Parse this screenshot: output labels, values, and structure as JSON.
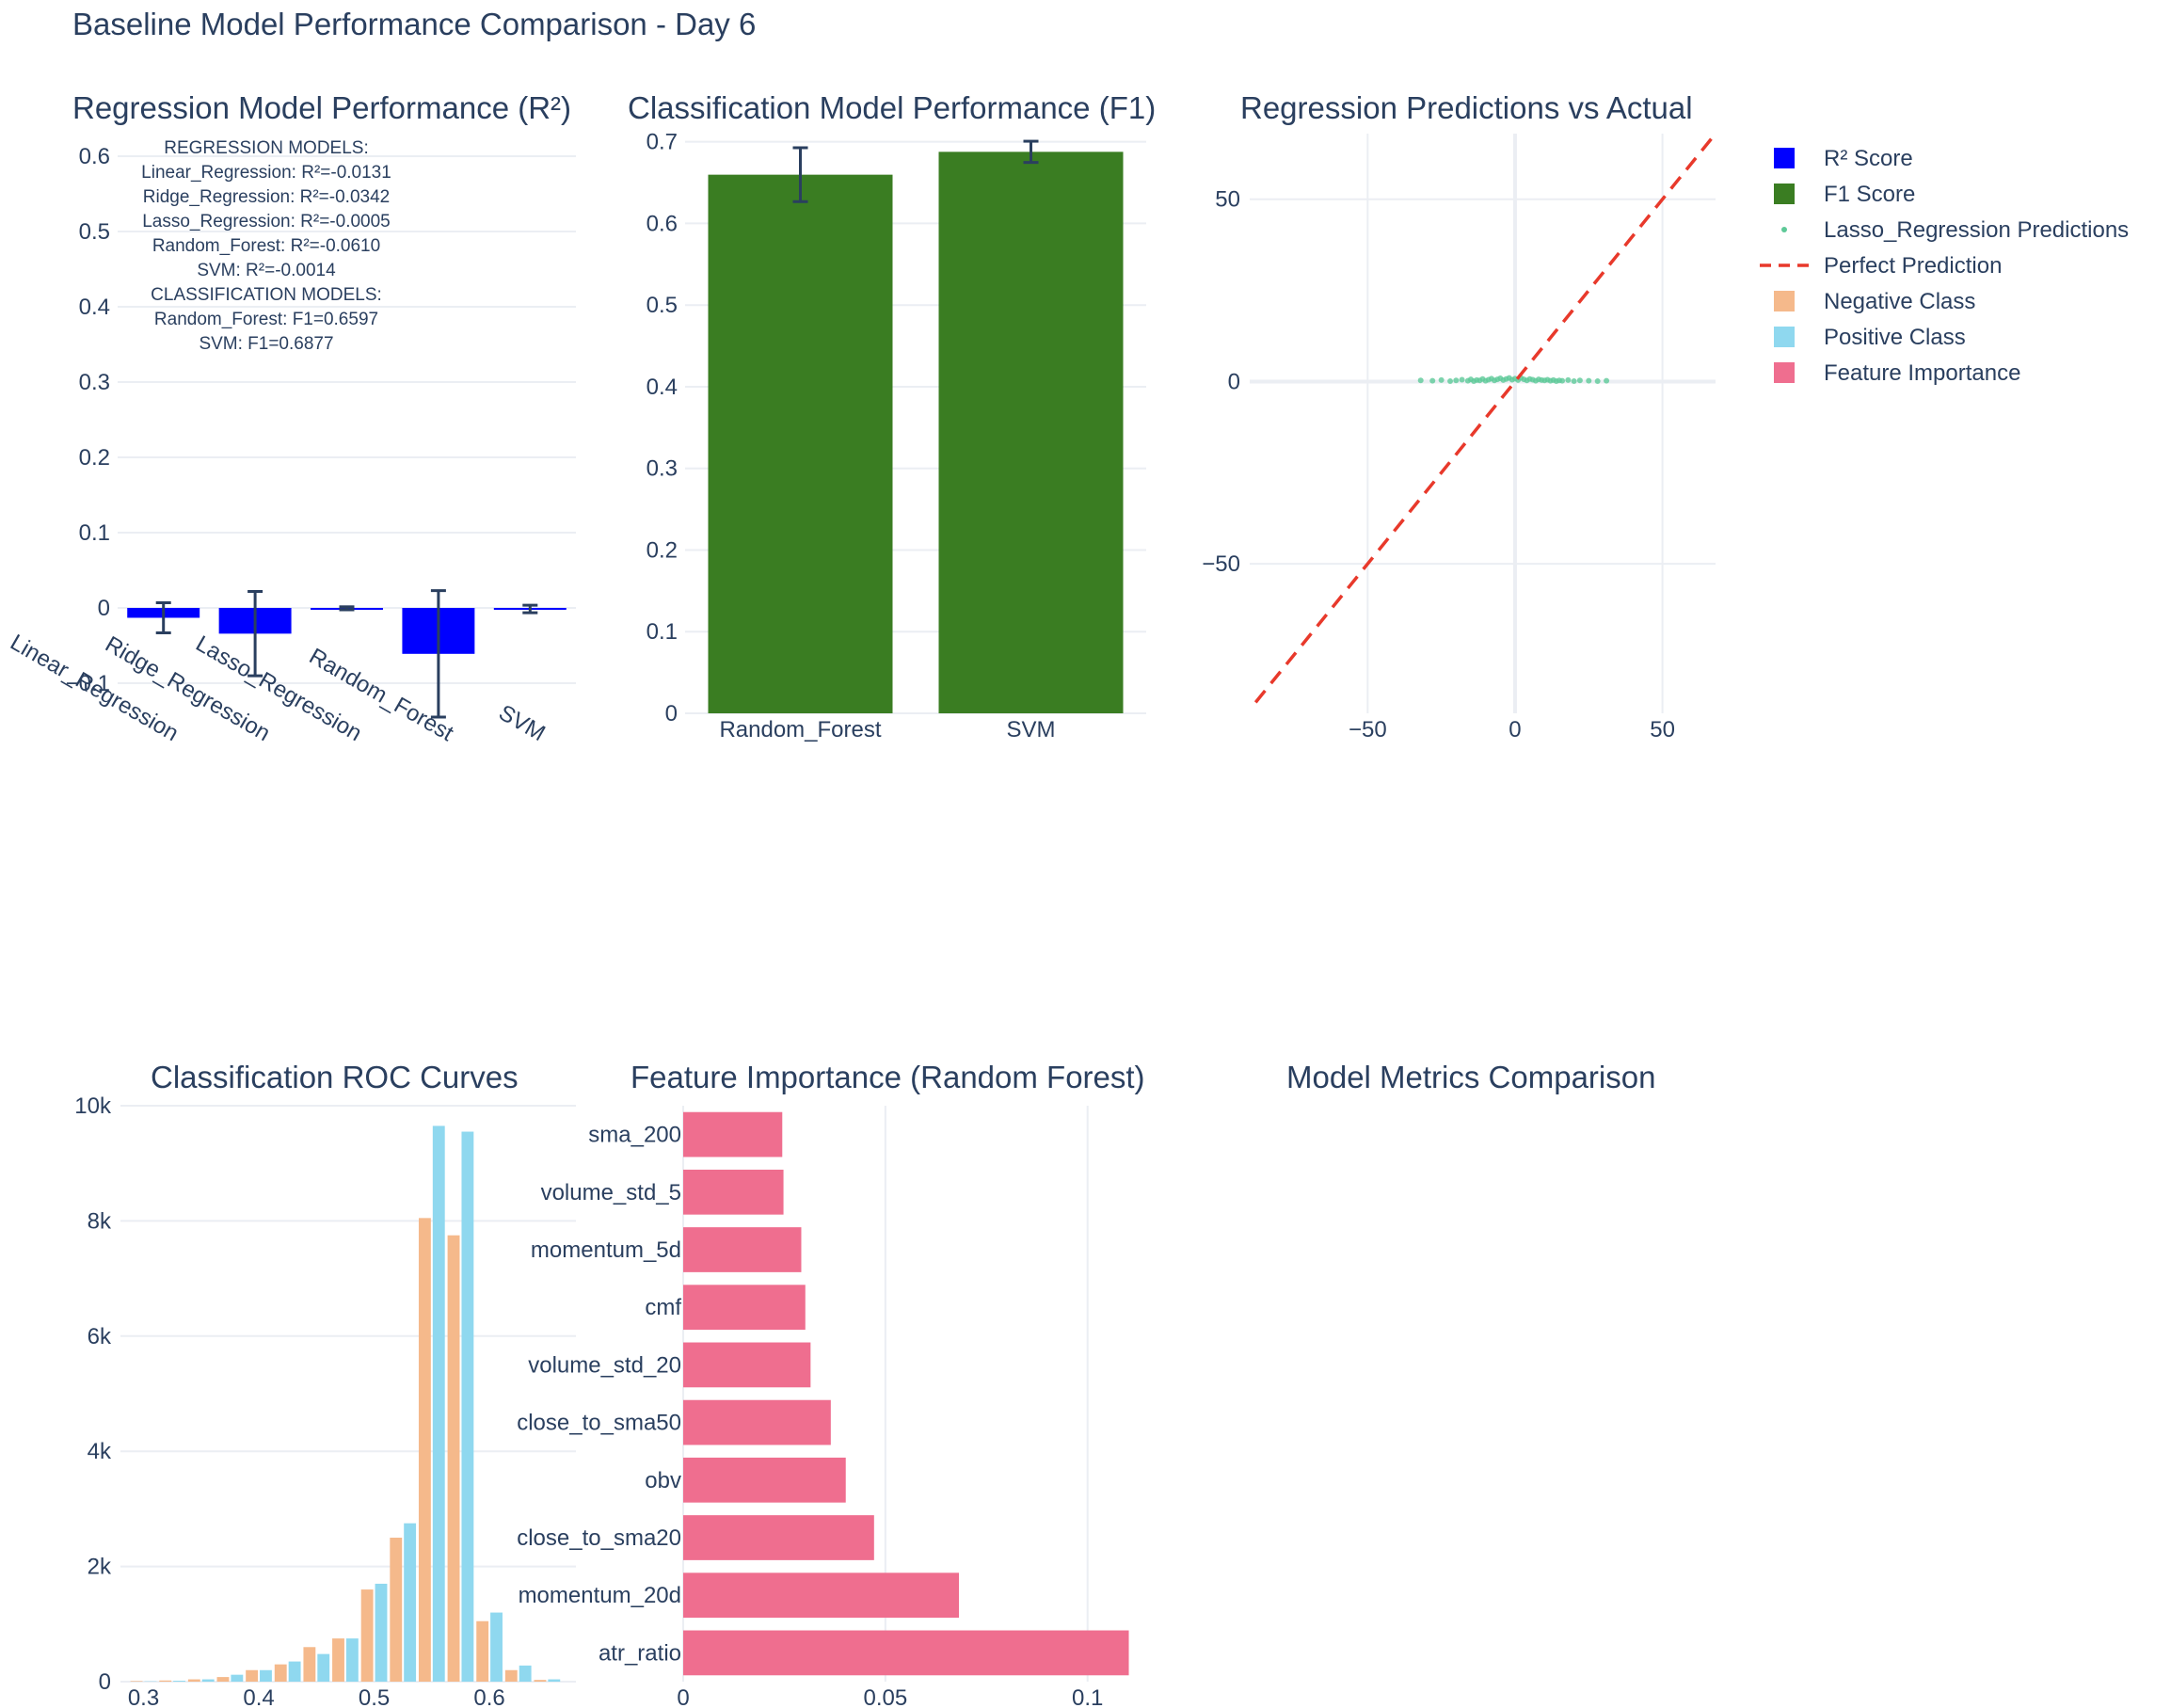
{
  "figure": {
    "title": "Baseline Model Performance Comparison - Day 6",
    "colors": {
      "reg": "#0000ff",
      "cls": "#3a7d22",
      "scatter": "#5ec998",
      "perfect": "#e8392b",
      "neg": "#f5b98b",
      "pos": "#8fd8ef",
      "feat": "#ef6e8f",
      "grid": "#ebeef3",
      "text": "#2a3f5f",
      "error": "#2a3f5f"
    }
  },
  "legend": {
    "items": [
      {
        "label": "R² Score",
        "kind": "square",
        "color": "#0000ff"
      },
      {
        "label": "F1 Score",
        "kind": "square",
        "color": "#3a7d22"
      },
      {
        "label": "Lasso_Regression Predictions",
        "kind": "dot",
        "color": "#5ec998"
      },
      {
        "label": "Perfect Prediction",
        "kind": "dash",
        "color": "#e8392b"
      },
      {
        "label": "Negative Class",
        "kind": "square",
        "color": "#f5b98b"
      },
      {
        "label": "Positive Class",
        "kind": "square",
        "color": "#8fd8ef"
      },
      {
        "label": "Feature Importance",
        "kind": "square",
        "color": "#ef6e8f"
      }
    ]
  },
  "annotation": {
    "lines": [
      "REGRESSION MODELS:",
      "Linear_Regression: R²=-0.0131",
      "Ridge_Regression: R²=-0.0342",
      "Lasso_Regression: R²=-0.0005",
      "Random_Forest: R²=-0.0610",
      "SVM: R²=-0.0014",
      "CLASSIFICATION MODELS:",
      "Random_Forest: F1=0.6597",
      "SVM: F1=0.6877"
    ]
  },
  "chart_data": [
    {
      "id": "reg",
      "type": "bar",
      "title": "Regression Model Performance (R²)",
      "series_name": "R² Score",
      "categories": [
        "Linear_Regression",
        "Ridge_Regression",
        "Lasso_Regression",
        "Random_Forest",
        "SVM"
      ],
      "values": [
        -0.0131,
        -0.0342,
        -0.0005,
        -0.061,
        -0.0014
      ],
      "error": [
        0.02,
        0.056,
        0.002,
        0.084,
        0.005
      ],
      "ylim": [
        -0.14,
        0.63
      ],
      "yticks": [
        -0.1,
        0,
        0.1,
        0.2,
        0.3,
        0.4,
        0.5,
        0.6
      ],
      "ytick_labels": [
        "−0.1",
        "0",
        "0.1",
        "0.2",
        "0.3",
        "0.4",
        "0.5",
        "0.6"
      ],
      "grid": true
    },
    {
      "id": "cls",
      "type": "bar",
      "title": "Classification Model Performance (F1)",
      "series_name": "F1 Score",
      "categories": [
        "Random_Forest",
        "SVM"
      ],
      "values": [
        0.6597,
        0.6877
      ],
      "error": [
        0.033,
        0.013
      ],
      "ylim": [
        0,
        0.71
      ],
      "yticks": [
        0,
        0.1,
        0.2,
        0.3,
        0.4,
        0.5,
        0.6,
        0.7
      ],
      "ytick_labels": [
        "0",
        "0.1",
        "0.2",
        "0.3",
        "0.4",
        "0.5",
        "0.6",
        "0.7"
      ],
      "grid": true
    },
    {
      "id": "scatter",
      "type": "scatter",
      "title": "Regression Predictions vs Actual",
      "series": [
        {
          "name": "Lasso_Regression Predictions",
          "x": [
            -32,
            -28,
            -25,
            -22,
            -20,
            -18,
            -16,
            -15,
            -14,
            -13,
            -12,
            -11,
            -10,
            -9,
            -8,
            -7,
            -6,
            -5,
            -4,
            -3,
            -2,
            -1,
            0,
            1,
            2,
            3,
            4,
            5,
            6,
            7,
            8,
            9,
            10,
            11,
            12,
            13,
            14,
            15,
            16,
            18,
            20,
            22,
            25,
            28,
            31
          ],
          "y": [
            0.3,
            0.2,
            0.4,
            0.1,
            0.3,
            0.5,
            0.2,
            0.6,
            0.1,
            0.4,
            0.3,
            0.7,
            0.2,
            0.5,
            0.8,
            0.3,
            0.6,
            0.9,
            0.4,
            0.7,
            1,
            0.5,
            0.8,
            0.4,
            1,
            0.6,
            0.3,
            0.7,
            0.5,
            0.2,
            0.6,
            0.4,
            0.3,
            0.5,
            0.2,
            0.4,
            0.1,
            0.3,
            0.2,
            0.4,
            0.1,
            0.3,
            0.2,
            0.1,
            0.2
          ]
        },
        {
          "name": "Perfect Prediction",
          "x": [
            -88,
            68
          ],
          "y": [
            -88,
            68
          ]
        }
      ],
      "xlim": [
        -90,
        68
      ],
      "ylim": [
        -91,
        68
      ],
      "xticks": [
        -50,
        0,
        50
      ],
      "xtick_labels": [
        "−50",
        "0",
        "50"
      ],
      "yticks": [
        -50,
        0,
        50
      ],
      "ytick_labels": [
        "−50",
        "0",
        "50"
      ],
      "grid": true
    },
    {
      "id": "roc",
      "type": "bar",
      "title": "Classification ROC Curves",
      "x": [
        0.3,
        0.325,
        0.35,
        0.375,
        0.4,
        0.425,
        0.45,
        0.475,
        0.5,
        0.525,
        0.55,
        0.575,
        0.6,
        0.625,
        0.65
      ],
      "series": [
        {
          "name": "Negative Class",
          "values": [
            10,
            20,
            40,
            80,
            200,
            300,
            600,
            750,
            1600,
            2500,
            8050,
            7750,
            1050,
            200,
            30
          ]
        },
        {
          "name": "Positive Class",
          "values": [
            5,
            15,
            40,
            120,
            200,
            350,
            480,
            750,
            1700,
            2750,
            9650,
            9550,
            1200,
            280,
            40
          ]
        }
      ],
      "xlim": [
        0.28,
        0.675
      ],
      "ylim": [
        0,
        10000
      ],
      "xticks": [
        0.3,
        0.4,
        0.5,
        0.6
      ],
      "xtick_labels": [
        "0.3",
        "0.4",
        "0.5",
        "0.6"
      ],
      "yticks": [
        0,
        2000,
        4000,
        6000,
        8000,
        10000
      ],
      "ytick_labels": [
        "0",
        "2k",
        "4k",
        "6k",
        "8k",
        "10k"
      ],
      "grid": true
    },
    {
      "id": "feat",
      "type": "bar",
      "orientation": "horizontal",
      "title": "Feature Importance (Random Forest)",
      "series_name": "Feature Importance",
      "categories": [
        "sma_200",
        "volume_std_5",
        "momentum_5d",
        "cmf",
        "volume_std_20",
        "close_to_sma50",
        "obv",
        "close_to_sma20",
        "momentum_20d",
        "atr_ratio"
      ],
      "values": [
        0.0245,
        0.0248,
        0.0292,
        0.0302,
        0.0315,
        0.0365,
        0.0402,
        0.0472,
        0.0682,
        0.1102
      ],
      "xlim": [
        0,
        0.1145
      ],
      "xticks": [
        0,
        0.05,
        0.1
      ],
      "xtick_labels": [
        "0",
        "0.05",
        "0.1"
      ],
      "grid": true
    },
    {
      "id": "metrics",
      "type": "table",
      "title": "Model Metrics Comparison"
    }
  ]
}
